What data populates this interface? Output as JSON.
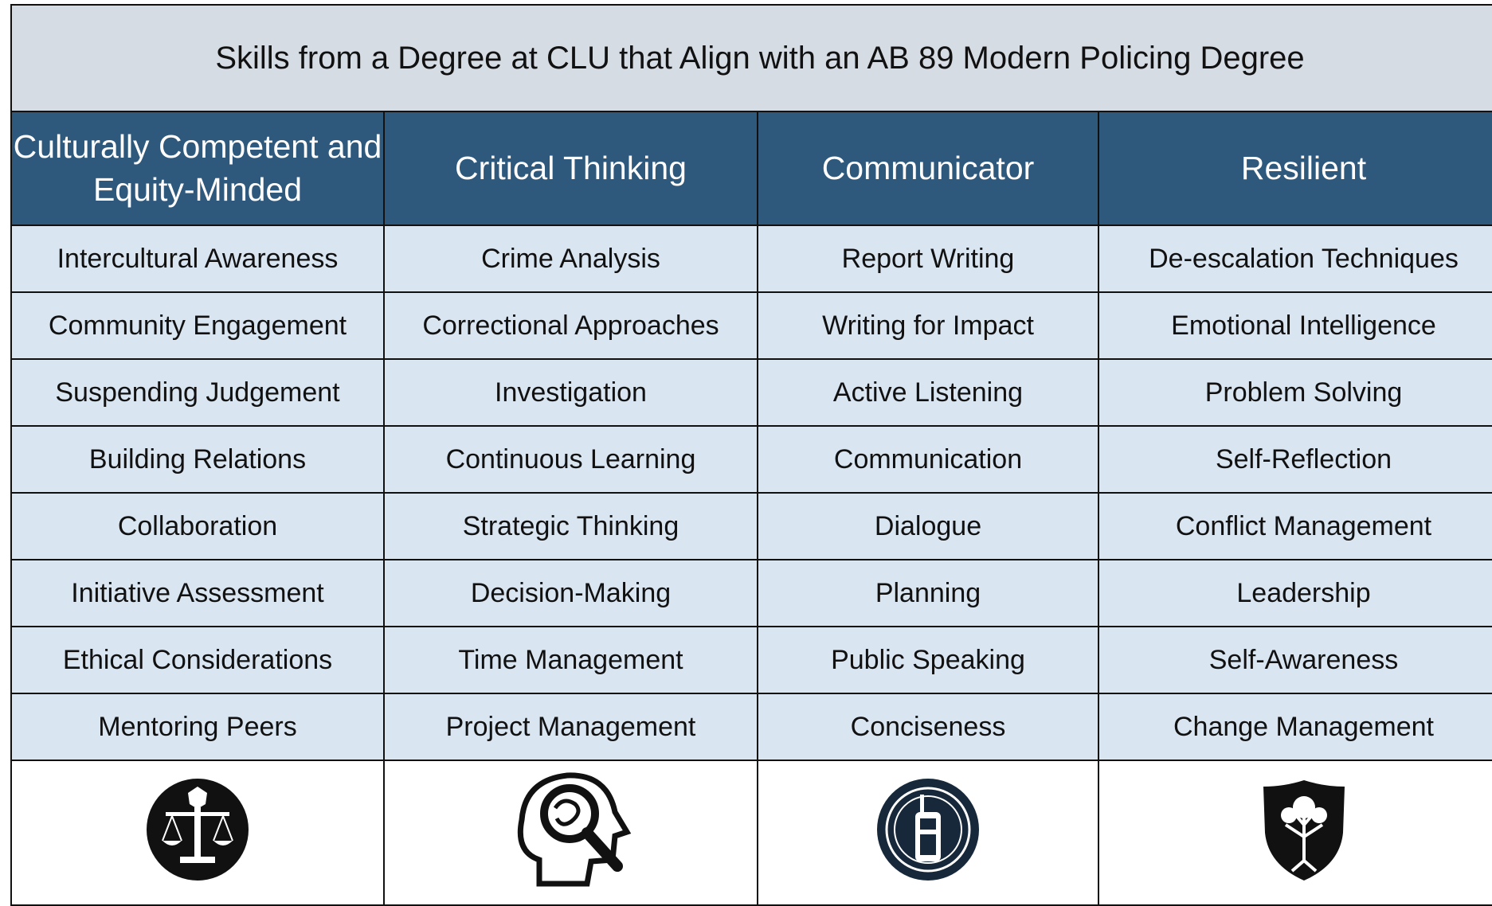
{
  "title": "Skills from a Degree at CLU that Align with an AB 89 Modern Policing Degree",
  "columns": [
    {
      "header": "Culturally Competent and Equity-Minded",
      "skills": [
        "Intercultural Awareness",
        "Community Engagement",
        "Suspending Judgement",
        "Building Relations",
        "Collaboration",
        "Initiative Assessment",
        "Ethical Considerations",
        "Mentoring Peers"
      ]
    },
    {
      "header": "Critical Thinking",
      "skills": [
        "Crime Analysis",
        "Correctional Approaches",
        "Investigation",
        "Continuous Learning",
        "Strategic Thinking",
        "Decision-Making",
        "Time Management",
        "Project Management"
      ]
    },
    {
      "header": "Communicator",
      "skills": [
        "Report Writing",
        "Writing for Impact",
        "Active Listening",
        "Communication",
        "Dialogue",
        "Planning",
        "Public Speaking",
        "Conciseness"
      ]
    },
    {
      "header": "Resilient",
      "skills": [
        "De-escalation Techniques",
        "Emotional Intelligence",
        "Problem Solving",
        "Self-Reflection",
        "Conflict Management",
        "Leadership",
        "Self-Awareness",
        "Change Management"
      ]
    }
  ]
}
